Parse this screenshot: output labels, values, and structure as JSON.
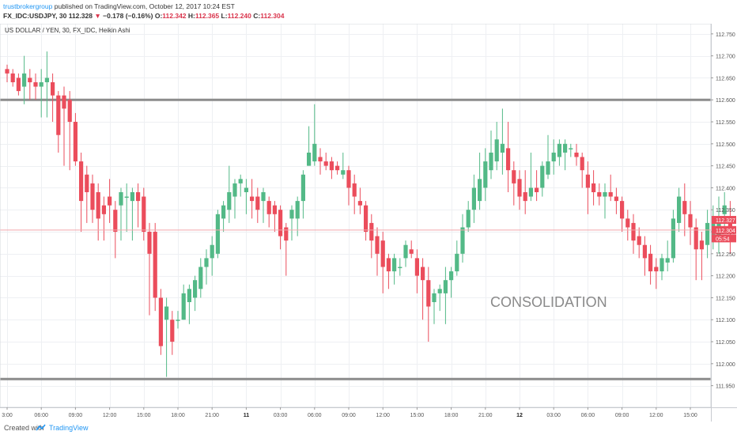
{
  "header": {
    "author": "trustbrokergroup",
    "published_text": "published on TradingView.com, October 12, 2017 10:24 EST",
    "symbol": "FX_IDC:USDJPY, 30",
    "last": "112.328",
    "change_arrow": "▼",
    "change": "−0.178 (−0.16%)",
    "o_label": "O:",
    "o_value": "112.342",
    "h_label": "H:",
    "h_value": "112.365",
    "l_label": "L:",
    "l_value": "112.240",
    "c_label": "C:",
    "c_value": "112.304"
  },
  "footer": {
    "created_with": "Created with",
    "brand": "TradingView",
    "brand_icon": "tradingview-logo-icon"
  },
  "colors": {
    "up": "#53b987",
    "down": "#eb4d5c",
    "grid": "#eef0f3",
    "hline": "#8c8c8c",
    "price_line": "#f3a6ac",
    "last_tag": "#eb4d5c"
  },
  "chart_data": {
    "type": "candlestick",
    "title": "US DOLLAR / YEN, 30, FX_IDC, Heikin Ashi",
    "annotation": "CONSOLIDATION",
    "ylim": [
      111.92,
      112.775
    ],
    "y_ticks": [
      "112.750",
      "112.700",
      "112.650",
      "112.600",
      "112.550",
      "112.500",
      "112.450",
      "112.400",
      "112.350",
      "112.300",
      "112.250",
      "112.200",
      "112.150",
      "112.100",
      "112.050",
      "112.000",
      "111.950"
    ],
    "y_tick_values": [
      112.75,
      112.7,
      112.65,
      112.6,
      112.55,
      112.5,
      112.45,
      112.4,
      112.35,
      112.3,
      112.25,
      112.2,
      112.15,
      112.1,
      112.05,
      112.0,
      111.95
    ],
    "x_ticks": [
      "3:00",
      "06:00",
      "09:00",
      "12:00",
      "15:00",
      "18:00",
      "21:00",
      "11",
      "03:00",
      "06:00",
      "09:00",
      "12:00",
      "15:00",
      "18:00",
      "21:00",
      "12",
      "03:00",
      "06:00",
      "09:00",
      "12:00",
      "15:00"
    ],
    "x_bold": [
      "11",
      "12"
    ],
    "x_tick_bar_index": [
      0,
      6,
      12,
      18,
      24,
      30,
      36,
      42,
      48,
      54,
      60,
      66,
      72,
      78,
      84,
      90,
      96,
      102,
      108,
      114,
      120
    ],
    "horizontal_levels": [
      112.6,
      111.965
    ],
    "current_price": 112.304,
    "price_tags": [
      {
        "text": "112.327",
        "value": 112.327
      },
      {
        "text": "112.304",
        "value": 112.304
      },
      {
        "text": "05:54",
        "value": 112.285
      }
    ],
    "candles": [
      [
        112.67,
        112.68,
        112.64,
        112.66
      ],
      [
        112.66,
        112.67,
        112.63,
        112.64
      ],
      [
        112.65,
        112.66,
        112.61,
        112.62
      ],
      [
        112.63,
        112.7,
        112.59,
        112.66
      ],
      [
        112.65,
        112.67,
        112.6,
        112.64
      ],
      [
        112.64,
        112.66,
        112.6,
        112.63
      ],
      [
        112.63,
        112.67,
        112.56,
        112.64
      ],
      [
        112.64,
        112.71,
        112.56,
        112.65
      ],
      [
        112.64,
        112.66,
        112.55,
        112.61
      ],
      [
        112.61,
        112.62,
        112.48,
        112.52
      ],
      [
        112.61,
        112.63,
        112.45,
        112.58
      ],
      [
        112.6,
        112.62,
        112.44,
        112.55
      ],
      [
        112.55,
        112.57,
        112.45,
        112.46
      ],
      [
        112.46,
        112.48,
        112.3,
        112.37
      ],
      [
        112.43,
        112.45,
        112.32,
        112.39
      ],
      [
        112.41,
        112.43,
        112.32,
        112.35
      ],
      [
        112.39,
        112.41,
        112.28,
        112.33
      ],
      [
        112.36,
        112.38,
        112.28,
        112.34
      ],
      [
        112.38,
        112.42,
        112.32,
        112.36
      ],
      [
        112.35,
        112.37,
        112.24,
        112.3
      ],
      [
        112.36,
        112.4,
        112.28,
        112.39
      ],
      [
        112.38,
        112.41,
        112.3,
        112.38
      ],
      [
        112.37,
        112.4,
        112.28,
        112.39
      ],
      [
        112.39,
        112.41,
        112.31,
        112.37
      ],
      [
        112.38,
        112.4,
        112.28,
        112.3
      ],
      [
        112.3,
        112.32,
        112.11,
        112.25
      ],
      [
        112.3,
        112.32,
        112.12,
        112.15
      ],
      [
        112.15,
        112.17,
        112.02,
        112.04
      ],
      [
        112.1,
        112.15,
        111.97,
        112.13
      ],
      [
        112.1,
        112.12,
        112.02,
        112.05
      ],
      [
        112.1,
        112.12,
        112.08,
        112.1
      ],
      [
        112.1,
        112.18,
        112.1,
        112.16
      ],
      [
        112.14,
        112.18,
        112.09,
        112.17
      ],
      [
        112.15,
        112.2,
        112.12,
        112.19
      ],
      [
        112.17,
        112.24,
        112.15,
        112.22
      ],
      [
        112.22,
        112.26,
        112.18,
        112.24
      ],
      [
        112.24,
        112.29,
        112.2,
        112.27
      ],
      [
        112.25,
        112.35,
        112.24,
        112.34
      ],
      [
        112.33,
        112.37,
        112.3,
        112.36
      ],
      [
        112.35,
        112.45,
        112.32,
        112.39
      ],
      [
        112.38,
        112.42,
        112.33,
        112.41
      ],
      [
        112.41,
        112.43,
        112.38,
        112.42
      ],
      [
        112.39,
        112.42,
        112.34,
        112.4
      ],
      [
        112.38,
        112.42,
        112.33,
        112.37
      ],
      [
        112.38,
        112.4,
        112.32,
        112.35
      ],
      [
        112.37,
        112.4,
        112.32,
        112.39
      ],
      [
        112.37,
        112.38,
        112.31,
        112.34
      ],
      [
        112.36,
        112.37,
        112.3,
        112.34
      ],
      [
        112.35,
        112.36,
        112.26,
        112.29
      ],
      [
        112.31,
        112.32,
        112.2,
        112.28
      ],
      [
        112.33,
        112.36,
        112.28,
        112.35
      ],
      [
        112.33,
        112.38,
        112.29,
        112.37
      ],
      [
        112.37,
        112.44,
        112.33,
        112.43
      ],
      [
        112.45,
        112.54,
        112.45,
        112.48
      ],
      [
        112.46,
        112.59,
        112.45,
        112.5
      ],
      [
        112.47,
        112.49,
        112.43,
        112.46
      ],
      [
        112.46,
        112.48,
        112.44,
        112.45
      ],
      [
        112.46,
        112.47,
        112.42,
        112.44
      ],
      [
        112.45,
        112.46,
        112.43,
        112.44
      ],
      [
        112.43,
        112.48,
        112.42,
        112.44
      ],
      [
        112.44,
        112.45,
        112.36,
        112.4
      ],
      [
        112.41,
        112.43,
        112.34,
        112.38
      ],
      [
        112.37,
        112.4,
        112.34,
        112.36
      ],
      [
        112.36,
        112.37,
        112.28,
        112.3
      ],
      [
        112.32,
        112.34,
        112.24,
        112.28
      ],
      [
        112.29,
        112.31,
        112.2,
        112.25
      ],
      [
        112.28,
        112.3,
        112.16,
        112.22
      ],
      [
        112.24,
        112.25,
        112.17,
        112.21
      ],
      [
        112.21,
        112.25,
        112.18,
        112.24
      ],
      [
        112.22,
        112.24,
        112.2,
        112.22
      ],
      [
        112.24,
        112.28,
        112.22,
        112.27
      ],
      [
        112.26,
        112.28,
        112.24,
        112.25
      ],
      [
        112.24,
        112.26,
        112.16,
        112.2
      ],
      [
        112.22,
        112.24,
        112.1,
        112.19
      ],
      [
        112.19,
        112.22,
        112.05,
        112.13
      ],
      [
        112.14,
        112.17,
        112.09,
        112.16
      ],
      [
        112.16,
        112.18,
        112.12,
        112.17
      ],
      [
        112.16,
        112.22,
        112.09,
        112.19
      ],
      [
        112.19,
        112.22,
        112.15,
        112.21
      ],
      [
        112.21,
        112.28,
        112.2,
        112.25
      ],
      [
        112.25,
        112.34,
        112.23,
        112.31
      ],
      [
        112.31,
        112.37,
        112.3,
        112.35
      ],
      [
        112.35,
        112.43,
        112.32,
        112.4
      ],
      [
        112.37,
        112.48,
        112.35,
        112.42
      ],
      [
        112.4,
        112.49,
        112.37,
        112.46
      ],
      [
        112.44,
        112.53,
        112.42,
        112.48
      ],
      [
        112.46,
        112.55,
        112.44,
        112.51
      ],
      [
        112.48,
        112.58,
        112.43,
        112.5
      ],
      [
        112.49,
        112.55,
        112.39,
        112.44
      ],
      [
        112.44,
        112.46,
        112.36,
        112.41
      ],
      [
        112.42,
        112.44,
        112.35,
        112.38
      ],
      [
        112.39,
        112.44,
        112.34,
        112.37
      ],
      [
        112.38,
        112.48,
        112.37,
        112.4
      ],
      [
        112.4,
        112.44,
        112.37,
        112.39
      ],
      [
        112.4,
        112.46,
        112.38,
        112.45
      ],
      [
        112.43,
        112.52,
        112.42,
        112.46
      ],
      [
        112.46,
        112.51,
        112.43,
        112.48
      ],
      [
        112.47,
        112.51,
        112.45,
        112.5
      ],
      [
        112.48,
        112.51,
        112.44,
        112.5
      ],
      [
        112.49,
        112.5,
        112.47,
        112.49
      ],
      [
        112.48,
        112.5,
        112.45,
        112.47
      ],
      [
        112.47,
        112.48,
        112.4,
        112.44
      ],
      [
        112.43,
        112.46,
        112.34,
        112.4
      ],
      [
        112.41,
        112.44,
        112.36,
        112.39
      ],
      [
        112.39,
        112.41,
        112.36,
        112.38
      ],
      [
        112.38,
        112.41,
        112.33,
        112.39
      ],
      [
        112.39,
        112.43,
        112.37,
        112.38
      ],
      [
        112.38,
        112.4,
        112.34,
        112.37
      ],
      [
        112.37,
        112.38,
        112.3,
        112.33
      ],
      [
        112.33,
        112.35,
        112.28,
        112.31
      ],
      [
        112.32,
        112.34,
        112.25,
        112.28
      ],
      [
        112.29,
        112.31,
        112.24,
        112.27
      ],
      [
        112.27,
        112.29,
        112.2,
        112.24
      ],
      [
        112.25,
        112.27,
        112.18,
        112.21
      ],
      [
        112.22,
        112.24,
        112.17,
        112.21
      ],
      [
        112.21,
        112.25,
        112.19,
        112.24
      ],
      [
        112.23,
        112.28,
        112.21,
        112.24
      ],
      [
        112.24,
        112.35,
        112.23,
        112.33
      ],
      [
        112.32,
        112.4,
        112.3,
        112.38
      ],
      [
        112.37,
        112.41,
        112.29,
        112.34
      ],
      [
        112.34,
        112.37,
        112.27,
        112.31
      ],
      [
        112.31,
        112.33,
        112.19,
        112.26
      ],
      [
        112.28,
        112.3,
        112.19,
        112.26
      ],
      [
        112.27,
        112.35,
        112.24,
        112.32
      ],
      [
        112.29,
        112.36,
        112.26,
        112.33
      ],
      [
        112.29,
        112.38,
        112.25,
        112.33
      ],
      [
        112.34,
        112.39,
        112.3,
        112.36
      ],
      [
        112.33,
        112.37,
        112.25,
        112.3
      ]
    ]
  }
}
